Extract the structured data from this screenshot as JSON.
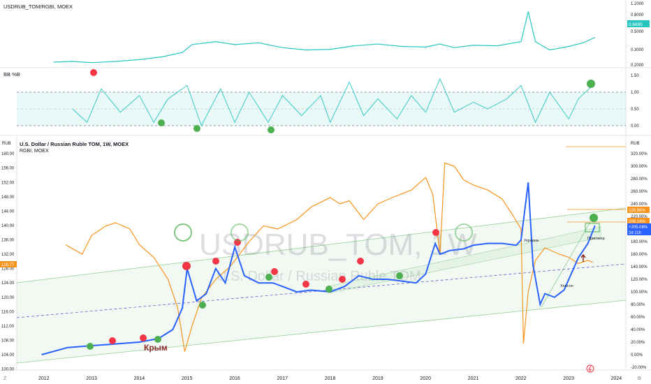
{
  "pane1": {
    "title": "USDRUB_TOM/RGBI, MOEX",
    "right_ticks": [
      "1.2000",
      "0.8000",
      "0.5000",
      "0.3000",
      "0.2000"
    ],
    "last_badge": "0.6695"
  },
  "pane2": {
    "title": "BB %B",
    "right_ticks": [
      "1.50",
      "1.00",
      "0.50",
      "0.00"
    ]
  },
  "pane3": {
    "title": "U.S. Dollar / Russian Ruble TOM, 1W, MOEX",
    "subtitle": "RGBI, MOEX",
    "unit_left": "RUB",
    "unit_right": "RUB",
    "left_ticks": [
      "160.00",
      "156.00",
      "152.00",
      "148.00",
      "144.00",
      "140.00",
      "136.00",
      "132.00",
      "128.00",
      "124.00",
      "120.00",
      "116.00",
      "112.00",
      "108.00",
      "104.00",
      "100.00"
    ],
    "right_ticks": [
      "320.00%",
      "300.00%",
      "280.00%",
      "260.00%",
      "240.00%",
      "220.00%",
      "200.00%",
      "180.00%",
      "160.00%",
      "140.00%",
      "120.00%",
      "100.00%",
      "80.00%",
      "60.00%",
      "40.00%",
      "20.00%",
      "0.00%",
      "-20.00%"
    ],
    "left_badge": "128.77",
    "badge_orange_1": "228.98%",
    "badge_orange_2": "208.14%",
    "badge_blue_1": "+205.08%",
    "badge_blue_2": "2d 11h",
    "watermark_big": "USDRUB_TOM, 1W",
    "watermark_small": "U.S. Dollar / Russian Ruble TOM"
  },
  "annotations": {
    "crimea": "Крым",
    "ukraine": "Украина",
    "kherson": "Херсон",
    "pricer": "Пригожер"
  },
  "x_axis": {
    "labels": [
      "2012",
      "2013",
      "2014",
      "2015",
      "2016",
      "2017",
      "2018",
      "2019",
      "2020",
      "2021",
      "2022",
      "2023",
      "2024"
    ]
  },
  "colors": {
    "blue": "#2962ff",
    "orange": "#f7931a",
    "teal": "#26c6bf",
    "red": "#f23645",
    "green": "#4caf50"
  },
  "chart_data": [
    {
      "type": "line",
      "title": "USDRUB_TOM/RGBI, MOEX",
      "series": [
        {
          "name": "USDRUB_TOM/RGBI",
          "x": [
            2012.2,
            2012.6,
            2013.0,
            2013.5,
            2014.0,
            2014.5,
            2014.9,
            2015.1,
            2015.6,
            2016.0,
            2016.5,
            2017.0,
            2017.5,
            2018.0,
            2018.5,
            2019.0,
            2019.5,
            2020.0,
            2020.3,
            2020.6,
            2021.0,
            2021.5,
            2022.0,
            2022.15,
            2022.3,
            2022.6,
            2023.0,
            2023.3,
            2023.55
          ],
          "values": [
            0.26,
            0.27,
            0.25,
            0.27,
            0.3,
            0.35,
            0.42,
            0.55,
            0.6,
            0.55,
            0.58,
            0.5,
            0.46,
            0.47,
            0.53,
            0.56,
            0.52,
            0.51,
            0.56,
            0.5,
            0.54,
            0.53,
            0.6,
            1.1,
            0.6,
            0.46,
            0.52,
            0.58,
            0.6695
          ]
        }
      ]
    },
    {
      "type": "line",
      "title": "BB %B",
      "series": [
        {
          "name": "BB %B",
          "x": [
            2012.6,
            2012.9,
            2013.2,
            2013.6,
            2014.0,
            2014.3,
            2014.6,
            2015.0,
            2015.3,
            2015.7,
            2016.0,
            2016.3,
            2016.7,
            2017.0,
            2017.4,
            2017.8,
            2018.0,
            2018.4,
            2018.7,
            2019.0,
            2019.4,
            2019.7,
            2020.0,
            2020.3,
            2020.6,
            2021.0,
            2021.3,
            2021.7,
            2022.0,
            2022.3,
            2022.6,
            2023.0,
            2023.2,
            2023.5
          ],
          "values": [
            0.5,
            0.1,
            1.1,
            0.4,
            0.9,
            0.1,
            0.8,
            1.2,
            0.0,
            1.1,
            0.1,
            1.0,
            0.1,
            0.9,
            0.3,
            0.9,
            0.1,
            1.3,
            0.3,
            0.8,
            0.2,
            0.9,
            0.4,
            1.4,
            0.4,
            0.7,
            0.5,
            0.8,
            1.2,
            0.1,
            1.0,
            0.2,
            0.8,
            1.2
          ]
        }
      ],
      "reference_lines": [
        1.0,
        0.5,
        0.0
      ]
    },
    {
      "type": "line",
      "title": "U.S. Dollar / Russian Ruble TOM, 1W, MOEX",
      "series": [
        {
          "name": "USDRUB_TOM",
          "x": [
            2011.95,
            2012.5,
            2013.0,
            2013.5,
            2014.0,
            2014.4,
            2014.7,
            2014.9,
            2015.0,
            2015.2,
            2015.4,
            2015.6,
            2015.8,
            2016.0,
            2016.2,
            2016.5,
            2016.8,
            2017.0,
            2017.3,
            2017.6,
            2018.0,
            2018.3,
            2018.6,
            2018.9,
            2019.2,
            2019.5,
            2019.8,
            2020.0,
            2020.2,
            2020.3,
            2020.5,
            2020.8,
            2021.0,
            2021.3,
            2021.6,
            2021.9,
            2022.0,
            2022.15,
            2022.25,
            2022.4,
            2022.5,
            2022.7,
            2022.9,
            2023.0,
            2023.2,
            2023.4,
            2023.55
          ],
          "values": [
            104.0,
            106.0,
            106.5,
            107.0,
            107.5,
            108.5,
            111.0,
            117.0,
            128.0,
            119.0,
            121.0,
            128.0,
            124.0,
            134.0,
            126.0,
            124.0,
            124.0,
            123.0,
            121.5,
            122.0,
            121.5,
            123.0,
            126.0,
            125.0,
            125.0,
            124.5,
            124.0,
            126.5,
            135.0,
            132.0,
            133.0,
            133.5,
            134.5,
            135.0,
            135.0,
            134.5,
            136.0,
            152.0,
            129.0,
            118.0,
            121.0,
            120.0,
            122.0,
            125.0,
            131.0,
            135.0,
            140.0
          ]
        },
        {
          "name": "RGBI",
          "x": [
            2012.45,
            2012.8,
            2013.0,
            2013.3,
            2013.5,
            2013.8,
            2014.0,
            2014.3,
            2014.6,
            2014.8,
            2014.95,
            2015.1,
            2015.3,
            2015.6,
            2015.9,
            2016.3,
            2016.6,
            2016.9,
            2017.3,
            2017.6,
            2018.0,
            2018.2,
            2018.4,
            2018.7,
            2019.0,
            2019.3,
            2019.7,
            2020.0,
            2020.15,
            2020.3,
            2020.4,
            2020.6,
            2020.8,
            2021.0,
            2021.3,
            2021.6,
            2021.8,
            2022.0,
            2022.05,
            2022.15,
            2022.3,
            2022.5,
            2022.8,
            2023.0,
            2023.2,
            2023.4,
            2023.5
          ],
          "values": [
            175,
            160,
            190,
            205,
            210,
            200,
            175,
            155,
            120,
            75,
            5,
            45,
            90,
            120,
            140,
            180,
            205,
            200,
            215,
            235,
            250,
            240,
            245,
            215,
            240,
            250,
            262,
            282,
            255,
            160,
            305,
            300,
            278,
            270,
            262,
            248,
            225,
            200,
            18,
            100,
            150,
            170,
            160,
            155,
            145,
            150,
            147
          ]
        }
      ],
      "events": [
        {
          "x": 2014.2,
          "label": "Крым"
        },
        {
          "x": 2022.15,
          "label": "Украина"
        },
        {
          "x": 2022.85,
          "label": "Херсон"
        },
        {
          "x": 2023.5,
          "label": "Пригожер"
        }
      ]
    }
  ]
}
